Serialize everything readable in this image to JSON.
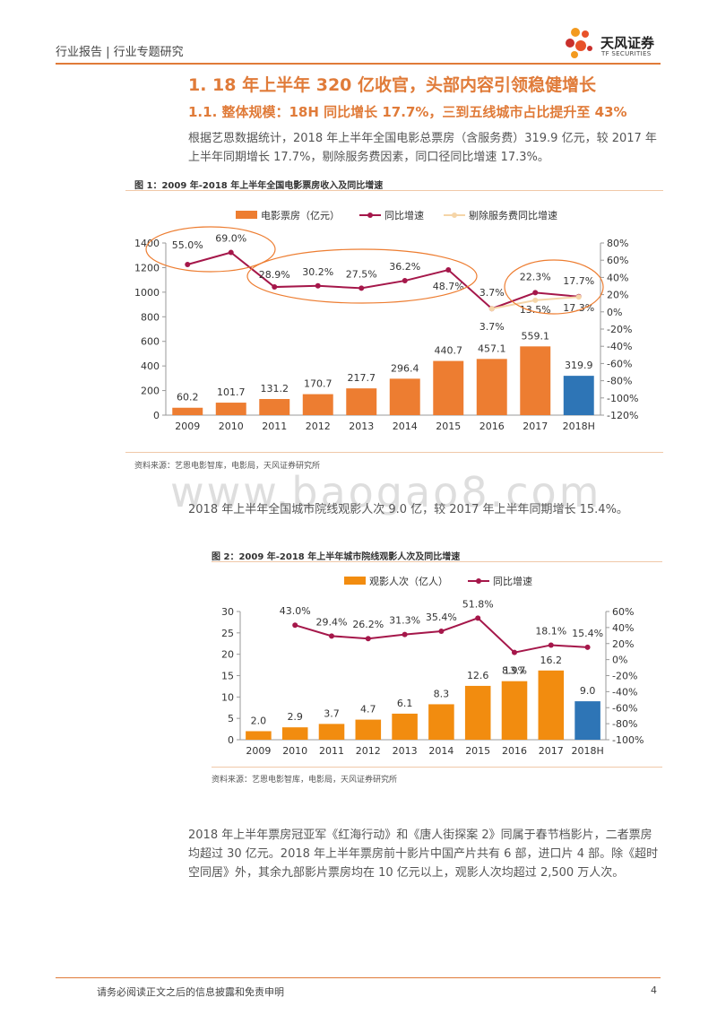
{
  "header": {
    "text": "行业报告 | 行业专题研究"
  },
  "logo": {
    "name": "天风证券",
    "sub": "TF SECURITIES",
    "colors": [
      "#e8522a",
      "#f39a1f",
      "#c9302c"
    ]
  },
  "section": {
    "h1": "1. 18 年上半年 320 亿收官，头部内容引领稳健增长",
    "h2": "1.1. 整体规模：18H 同比增长 17.7%，三到五线城市占比提升至 43%"
  },
  "paragraphs": {
    "p1": "根据艺恩数据统计，2018 年上半年全国电影总票房（含服务费）319.9 亿元，较 2017 年上半年同期增长 17.7%，剔除服务费因素，同口径同比增速 17.3%。",
    "p2": "2018 年上半年全国城市院线观影人次 9.0 亿，较 2017 年上半年同期增长 15.4%。",
    "p3": "2018 年上半年票房冠亚军《红海行动》和《唐人街探案 2》同属于春节档影片，二者票房均超过 30 亿元。2018 年上半年票房前十影片中国产片共有 6 部，进口片 4 部。除《超时空同居》外，其余九部影片票房均在 10 亿元以上，观影人次均超过 2,500 万人次。"
  },
  "watermark": "www.baogao8.com",
  "figure1": {
    "title": "图 1：2009 年-2018 年上半年全国电影票房收入及同比增速",
    "source": "资料来源：艺恩电影智库，电影局，天风证券研究所"
  },
  "figure2": {
    "title": "图 2：2009 年-2018 年上半年城市院线观影人次及同比增速",
    "source": "资料来源：艺恩电影智库，电影局，天风证券研究所"
  },
  "chart_data": [
    {
      "type": "bar",
      "categories": [
        "2009",
        "2010",
        "2011",
        "2012",
        "2013",
        "2014",
        "2015",
        "2016",
        "2017",
        "2018H"
      ],
      "series": [
        {
          "name": "电影票房（亿元）",
          "kind": "bar",
          "axis": "left",
          "color": "#ed7d31",
          "highlight_color": "#2e75b6",
          "values": [
            60.2,
            101.7,
            131.2,
            170.7,
            217.7,
            296.4,
            440.7,
            457.1,
            559.1,
            319.9
          ],
          "labels": [
            "60.2",
            "101.7",
            "131.2",
            "170.7",
            "217.7",
            "296.4",
            "440.7",
            "457.1",
            "559.1",
            "319.9"
          ]
        },
        {
          "name": "同比增速",
          "kind": "line",
          "axis": "right",
          "color": "#a5174a",
          "values": [
            55.0,
            69.0,
            28.9,
            30.2,
            27.5,
            36.2,
            48.7,
            3.7,
            22.3,
            17.7
          ],
          "labels": [
            "55.0%",
            "69.0%",
            "28.9%",
            "30.2%",
            "27.5%",
            "36.2%",
            "48.7%",
            "3.7%",
            "22.3%",
            "17.7%"
          ]
        },
        {
          "name": "剔除服务费同比增速",
          "kind": "line",
          "axis": "right",
          "color": "#f5d5a8",
          "values": [
            null,
            null,
            null,
            null,
            null,
            null,
            null,
            3.7,
            13.5,
            17.3
          ],
          "labels": [
            "",
            "",
            "",
            "",
            "",
            "",
            "",
            "3.7%",
            "13.5%",
            "17.3%"
          ]
        }
      ],
      "y_left": {
        "min": 0,
        "max": 1400,
        "ticks": [
          "0",
          "200",
          "400",
          "600",
          "800",
          "1000",
          "1200",
          "1400"
        ]
      },
      "y_right": {
        "min": -120,
        "max": 80,
        "ticks": [
          "-120%",
          "-100%",
          "-80%",
          "-60%",
          "-40%",
          "-20%",
          "0%",
          "20%",
          "40%",
          "60%",
          "80%"
        ]
      },
      "legend": "top",
      "grid": false,
      "highlight_circle_color": "#ed7d31"
    },
    {
      "type": "bar",
      "categories": [
        "2009",
        "2010",
        "2011",
        "2012",
        "2013",
        "2014",
        "2015",
        "2016",
        "2017",
        "2018H"
      ],
      "series": [
        {
          "name": "观影人次（亿人）",
          "kind": "bar",
          "axis": "left",
          "color": "#f28c0f",
          "highlight_color": "#2e75b6",
          "values": [
            2.0,
            2.9,
            3.7,
            4.7,
            6.1,
            8.3,
            12.6,
            13.7,
            16.2,
            9.0
          ],
          "labels": [
            "2.0",
            "2.9",
            "3.7",
            "4.7",
            "6.1",
            "8.3",
            "12.6",
            "13.7",
            "16.2",
            "9.0"
          ]
        },
        {
          "name": "同比增速",
          "kind": "line",
          "axis": "right",
          "color": "#a5174a",
          "values": [
            null,
            43.0,
            29.4,
            26.2,
            31.3,
            35.4,
            51.8,
            8.9,
            18.1,
            15.4
          ],
          "labels": [
            "",
            "43.0%",
            "29.4%",
            "26.2%",
            "31.3%",
            "35.4%",
            "51.8%",
            "8.9%",
            "18.1%",
            "15.4%"
          ]
        }
      ],
      "y_left": {
        "min": 0,
        "max": 30,
        "ticks": [
          "0",
          "5",
          "10",
          "15",
          "20",
          "25",
          "30"
        ]
      },
      "y_right": {
        "min": -100,
        "max": 60,
        "ticks": [
          "-100%",
          "-80%",
          "-60%",
          "-40%",
          "-20%",
          "0%",
          "20%",
          "40%",
          "60%"
        ]
      },
      "legend": "top",
      "grid": false
    }
  ],
  "footer": {
    "text": "请务必阅读正文之后的信息披露和免责申明",
    "page": "4"
  }
}
